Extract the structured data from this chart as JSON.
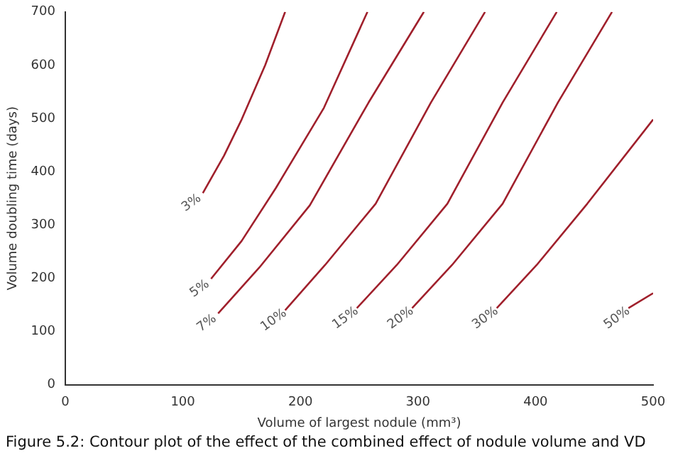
{
  "chart_data": {
    "type": "line",
    "xlabel": "Volume of largest nodule (mm³)",
    "ylabel": "Volume doubling time (days)",
    "xlim": [
      0,
      500
    ],
    "ylim": [
      0,
      700
    ],
    "xticks": [
      0,
      100,
      200,
      300,
      400,
      500
    ],
    "yticks": [
      0,
      100,
      200,
      300,
      400,
      500,
      600,
      700
    ],
    "grid": false,
    "legend": false,
    "marker": "none",
    "line_style": "solid",
    "series": [
      {
        "name": "3%",
        "color": "#a0202c",
        "x": [
          117,
          135,
          150,
          170,
          187
        ],
        "values": [
          360,
          430,
          498,
          600,
          700
        ]
      },
      {
        "name": "5%",
        "color": "#a0202c",
        "x": [
          124,
          150,
          179,
          220,
          257
        ],
        "values": [
          199,
          270,
          369,
          520,
          700
        ]
      },
      {
        "name": "7%",
        "color": "#a0202c",
        "x": [
          130,
          165,
          208,
          258,
          305
        ],
        "values": [
          134,
          220,
          337,
          530,
          700
        ]
      },
      {
        "name": "10%",
        "color": "#a0202c",
        "x": [
          187,
          221,
          264,
          311,
          357
        ],
        "values": [
          140,
          225,
          340,
          530,
          700
        ]
      },
      {
        "name": "15%",
        "color": "#a0202c",
        "x": [
          248,
          282,
          325,
          372,
          418
        ],
        "values": [
          144,
          225,
          340,
          530,
          700
        ]
      },
      {
        "name": "20%",
        "color": "#a0202c",
        "x": [
          295,
          329,
          372,
          419,
          465
        ],
        "values": [
          144,
          225,
          340,
          530,
          700
        ]
      },
      {
        "name": "30%",
        "color": "#a0202c",
        "x": [
          367,
          401,
          444,
          500
        ],
        "values": [
          144,
          225,
          340,
          498
        ]
      },
      {
        "name": "50%",
        "color": "#a0202c",
        "x": [
          479,
          500
        ],
        "values": [
          144,
          172
        ]
      }
    ],
    "annotations": [
      "Figure 5.2: Contour plot of the effect of the combined effect of nodule volume and VD"
    ]
  }
}
